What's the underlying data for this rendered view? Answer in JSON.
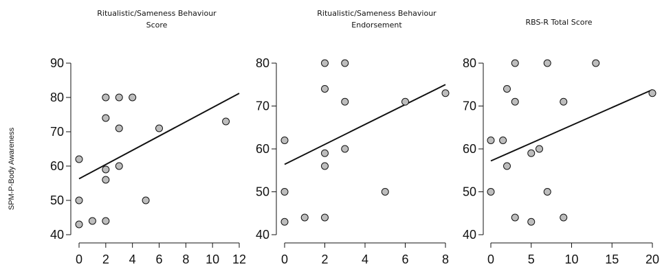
{
  "figure": {
    "ylabel": "SPM-P-Body Awareness"
  },
  "chart_data": [
    {
      "type": "scatter",
      "title_lines": [
        "Ritualistic/Sameness Behaviour",
        "Score"
      ],
      "xlim": [
        0,
        12
      ],
      "ylim": [
        40,
        90
      ],
      "x_ticks": [
        0,
        2,
        4,
        6,
        8,
        10,
        12
      ],
      "y_ticks": [
        40,
        50,
        60,
        70,
        80,
        90
      ],
      "points": [
        {
          "x": 0,
          "y": 62
        },
        {
          "x": 0,
          "y": 50
        },
        {
          "x": 0,
          "y": 43
        },
        {
          "x": 1,
          "y": 44
        },
        {
          "x": 2,
          "y": 80
        },
        {
          "x": 2,
          "y": 74
        },
        {
          "x": 2,
          "y": 59
        },
        {
          "x": 2,
          "y": 56
        },
        {
          "x": 2,
          "y": 44
        },
        {
          "x": 3,
          "y": 80
        },
        {
          "x": 3,
          "y": 71
        },
        {
          "x": 3,
          "y": 60
        },
        {
          "x": 4,
          "y": 80
        },
        {
          "x": 5,
          "y": 50
        },
        {
          "x": 6,
          "y": 71
        },
        {
          "x": 11,
          "y": 73
        }
      ],
      "fit_line": {
        "x0": 0,
        "y0": 56.3,
        "x1": 12,
        "y1": 81.2
      },
      "grid": false
    },
    {
      "type": "scatter",
      "title_lines": [
        "Ritualistic/Sameness Behaviour",
        "Endorsement"
      ],
      "xlim": [
        0,
        8
      ],
      "ylim": [
        40,
        80
      ],
      "x_ticks": [
        0,
        2,
        4,
        6,
        8
      ],
      "y_ticks": [
        40,
        50,
        60,
        70,
        80
      ],
      "points": [
        {
          "x": 0,
          "y": 62
        },
        {
          "x": 0,
          "y": 50
        },
        {
          "x": 0,
          "y": 43
        },
        {
          "x": 1,
          "y": 44
        },
        {
          "x": 2,
          "y": 80
        },
        {
          "x": 2,
          "y": 74
        },
        {
          "x": 2,
          "y": 59
        },
        {
          "x": 2,
          "y": 56
        },
        {
          "x": 2,
          "y": 44
        },
        {
          "x": 3,
          "y": 80
        },
        {
          "x": 3,
          "y": 71
        },
        {
          "x": 3,
          "y": 60
        },
        {
          "x": 5,
          "y": 50
        },
        {
          "x": 6,
          "y": 71
        },
        {
          "x": 8,
          "y": 73
        }
      ],
      "fit_line": {
        "x0": 0,
        "y0": 56.4,
        "x1": 8,
        "y1": 75.0
      },
      "grid": false
    },
    {
      "type": "scatter",
      "title_lines": [
        "RBS-R Total Score"
      ],
      "xlim": [
        0,
        20
      ],
      "ylim": [
        40,
        80
      ],
      "x_ticks": [
        0,
        5,
        10,
        15,
        20
      ],
      "y_ticks": [
        40,
        50,
        60,
        70,
        80
      ],
      "points": [
        {
          "x": 0,
          "y": 62
        },
        {
          "x": 0,
          "y": 50
        },
        {
          "x": 1.5,
          "y": 62
        },
        {
          "x": 2,
          "y": 74
        },
        {
          "x": 2,
          "y": 56
        },
        {
          "x": 3,
          "y": 80
        },
        {
          "x": 3,
          "y": 71
        },
        {
          "x": 3,
          "y": 44
        },
        {
          "x": 5,
          "y": 59
        },
        {
          "x": 5,
          "y": 43
        },
        {
          "x": 6,
          "y": 60
        },
        {
          "x": 7,
          "y": 80
        },
        {
          "x": 7,
          "y": 50
        },
        {
          "x": 9,
          "y": 71
        },
        {
          "x": 9,
          "y": 44
        },
        {
          "x": 13,
          "y": 80
        },
        {
          "x": 20,
          "y": 73
        }
      ],
      "fit_line": {
        "x0": 0,
        "y0": 57.2,
        "x1": 20,
        "y1": 73.8
      },
      "grid": false
    }
  ]
}
